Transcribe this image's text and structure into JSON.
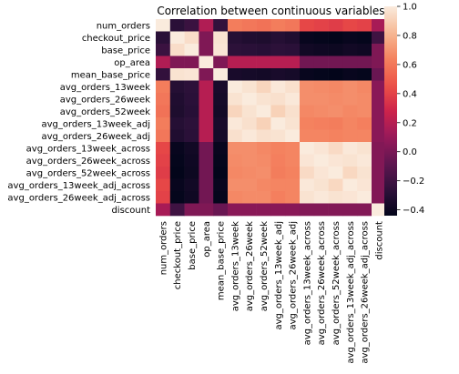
{
  "chart_data": {
    "type": "heatmap",
    "title": "Correlation between continuous variables",
    "row_labels": [
      "num_orders",
      "checkout_price",
      "base_price",
      "op_area",
      "mean_base_price",
      "avg_orders_13week",
      "avg_orders_26week",
      "avg_orders_52week",
      "avg_orders_13week_adj",
      "avg_orders_26week_adj",
      "avg_orders_13week_across",
      "avg_orders_26week_across",
      "avg_orders_52week_across",
      "avg_orders_13week_adj_across",
      "avg_orders_26week_adj_across",
      "discount"
    ],
    "col_labels": [
      "num_orders",
      "checkout_price",
      "base_price",
      "op_area",
      "mean_base_price",
      "avg_orders_13week",
      "avg_orders_26week",
      "avg_orders_52week",
      "avg_orders_13week_adj",
      "avg_orders_26week_adj",
      "avg_orders_13week_across",
      "avg_orders_26week_across",
      "avg_orders_52week_across",
      "avg_orders_13week_adj_across",
      "avg_orders_26week_adj_across",
      "discount"
    ],
    "values": [
      [
        1.0,
        -0.28,
        -0.22,
        0.18,
        -0.25,
        0.62,
        0.6,
        0.58,
        0.62,
        0.6,
        0.42,
        0.4,
        0.38,
        0.42,
        0.4,
        0.15
      ],
      [
        -0.28,
        1.0,
        0.95,
        0.02,
        0.97,
        -0.3,
        -0.32,
        -0.33,
        -0.3,
        -0.32,
        -0.42,
        -0.43,
        -0.44,
        -0.42,
        -0.43,
        -0.2
      ],
      [
        -0.22,
        0.95,
        1.0,
        0.02,
        0.98,
        -0.27,
        -0.28,
        -0.29,
        -0.27,
        -0.28,
        -0.38,
        -0.39,
        -0.4,
        -0.38,
        -0.39,
        0.02
      ],
      [
        0.18,
        0.02,
        0.02,
        1.0,
        0.02,
        0.2,
        0.2,
        0.2,
        0.2,
        0.2,
        -0.02,
        -0.02,
        -0.02,
        -0.02,
        -0.02,
        0.02
      ],
      [
        -0.25,
        0.97,
        0.98,
        0.02,
        1.0,
        -0.35,
        -0.36,
        -0.37,
        -0.35,
        -0.36,
        -0.42,
        -0.43,
        -0.44,
        -0.42,
        -0.43,
        -0.05
      ],
      [
        0.62,
        -0.3,
        -0.27,
        0.2,
        -0.35,
        1.0,
        0.97,
        0.92,
        0.99,
        0.96,
        0.68,
        0.67,
        0.66,
        0.68,
        0.66,
        0.05
      ],
      [
        0.6,
        -0.32,
        -0.28,
        0.2,
        -0.36,
        0.97,
        1.0,
        0.97,
        0.96,
        0.99,
        0.68,
        0.68,
        0.67,
        0.68,
        0.67,
        0.05
      ],
      [
        0.58,
        -0.33,
        -0.29,
        0.2,
        -0.37,
        0.92,
        0.97,
        1.0,
        0.91,
        0.96,
        0.66,
        0.67,
        0.68,
        0.66,
        0.67,
        0.05
      ],
      [
        0.62,
        -0.3,
        -0.27,
        0.2,
        -0.35,
        0.99,
        0.96,
        0.91,
        1.0,
        0.97,
        0.64,
        0.63,
        0.62,
        0.65,
        0.63,
        0.05
      ],
      [
        0.6,
        -0.32,
        -0.28,
        0.2,
        -0.36,
        0.96,
        0.99,
        0.96,
        0.97,
        1.0,
        0.65,
        0.65,
        0.64,
        0.65,
        0.65,
        0.05
      ],
      [
        0.42,
        -0.42,
        -0.38,
        -0.02,
        -0.42,
        0.68,
        0.68,
        0.66,
        0.64,
        0.65,
        1.0,
        0.98,
        0.94,
        0.99,
        0.97,
        0.03
      ],
      [
        0.4,
        -0.43,
        -0.39,
        -0.02,
        -0.43,
        0.67,
        0.68,
        0.67,
        0.63,
        0.65,
        0.98,
        1.0,
        0.98,
        0.97,
        0.99,
        0.03
      ],
      [
        0.38,
        -0.44,
        -0.4,
        -0.02,
        -0.44,
        0.66,
        0.67,
        0.68,
        0.62,
        0.64,
        0.94,
        0.98,
        1.0,
        0.93,
        0.97,
        0.03
      ],
      [
        0.42,
        -0.42,
        -0.38,
        -0.02,
        -0.42,
        0.68,
        0.68,
        0.66,
        0.65,
        0.65,
        0.99,
        0.97,
        0.93,
        1.0,
        0.98,
        0.03
      ],
      [
        0.4,
        -0.43,
        -0.39,
        -0.02,
        -0.43,
        0.66,
        0.67,
        0.67,
        0.63,
        0.65,
        0.97,
        0.99,
        0.97,
        0.98,
        1.0,
        0.03
      ],
      [
        0.15,
        -0.2,
        0.02,
        0.02,
        -0.05,
        0.05,
        0.05,
        0.05,
        0.05,
        0.05,
        0.03,
        0.03,
        0.03,
        0.03,
        0.03,
        1.0
      ]
    ],
    "colorbar": {
      "vmin": -0.44,
      "vmax": 1.0,
      "ticks": [
        -0.4,
        -0.2,
        0.0,
        0.2,
        0.4,
        0.6,
        0.8,
        1.0
      ],
      "tick_labels": [
        "−0.4",
        "−0.2",
        "0.0",
        "0.2",
        "0.4",
        "0.6",
        "0.8",
        "1.0"
      ]
    },
    "colormap": "rocket"
  }
}
